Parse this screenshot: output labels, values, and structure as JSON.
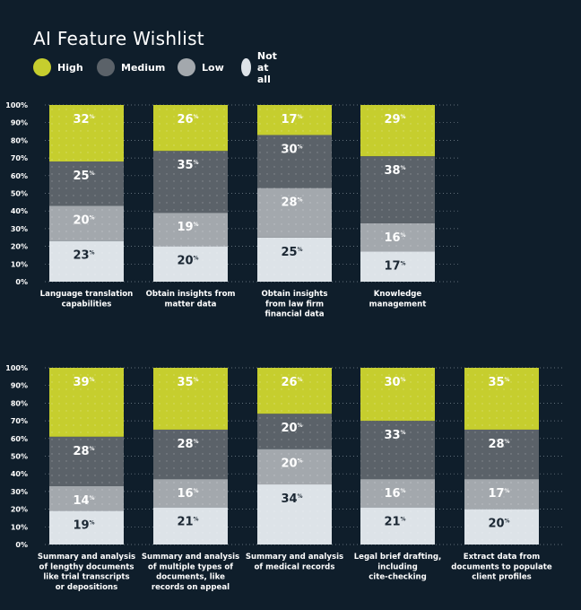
{
  "title": "AI Feature Wishlist",
  "legend": [
    {
      "label": "High",
      "color": "#c6ce2e"
    },
    {
      "label": "Medium",
      "color": "#5b6269"
    },
    {
      "label": "Low",
      "color": "#a3a8ad"
    },
    {
      "label": "Not at all",
      "color": "#dde3e8"
    }
  ],
  "chart_data": [
    {
      "type": "bar",
      "stacked": true,
      "ylim": [
        0,
        100
      ],
      "yticks": [
        "0%",
        "10%",
        "20%",
        "30%",
        "40%",
        "50%",
        "60%",
        "70%",
        "80%",
        "90%",
        "100%"
      ],
      "grid": true,
      "categories": [
        [
          "Language translation",
          "capabilities"
        ],
        [
          "Obtain insights from",
          "matter data"
        ],
        [
          "Obtain insights",
          "from law firm",
          "financial data"
        ],
        [
          "Knowledge",
          "management"
        ]
      ],
      "series": [
        {
          "name": "Not at all",
          "values": [
            23,
            20,
            25,
            17
          ]
        },
        {
          "name": "Low",
          "values": [
            20,
            19,
            28,
            16
          ]
        },
        {
          "name": "Medium",
          "values": [
            25,
            35,
            30,
            38
          ]
        },
        {
          "name": "High",
          "values": [
            32,
            26,
            17,
            29
          ]
        }
      ]
    },
    {
      "type": "bar",
      "stacked": true,
      "ylim": [
        0,
        100
      ],
      "yticks": [
        "0%",
        "10%",
        "20%",
        "30%",
        "40%",
        "50%",
        "60%",
        "70%",
        "80%",
        "90%",
        "100%"
      ],
      "grid": true,
      "categories": [
        [
          "Summary and analysis",
          "of lengthy documents",
          "like trial transcripts",
          "or depositions"
        ],
        [
          "Summary and analysis",
          "of multiple types of",
          "documents, like",
          "records on appeal"
        ],
        [
          "Summary and analysis",
          "of medical records"
        ],
        [
          "Legal brief drafting,",
          "including",
          "cite-checking"
        ],
        [
          "Extract data from",
          "documents to populate",
          "client profiles"
        ]
      ],
      "series": [
        {
          "name": "Not at all",
          "values": [
            19,
            21,
            34,
            21,
            20
          ]
        },
        {
          "name": "Low",
          "values": [
            14,
            16,
            20,
            16,
            17
          ]
        },
        {
          "name": "Medium",
          "values": [
            28,
            28,
            20,
            33,
            28
          ]
        },
        {
          "name": "High",
          "values": [
            39,
            35,
            26,
            30,
            35
          ]
        }
      ]
    }
  ]
}
